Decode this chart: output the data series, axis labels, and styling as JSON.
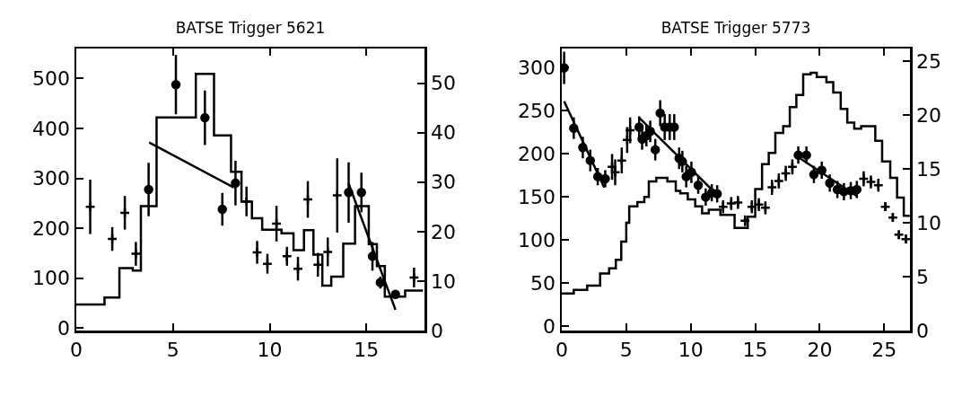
{
  "chart_data": [
    {
      "type": "scatter",
      "title": "BATSE Trigger 5621",
      "xlim": [
        0,
        18
      ],
      "xticks": [
        0,
        5,
        10,
        15
      ],
      "ylim": [
        -5,
        560
      ],
      "yticks": [
        0,
        100,
        200,
        300,
        400,
        500
      ],
      "y2lim": [
        0,
        57
      ],
      "y2ticks": [
        0,
        10,
        20,
        30,
        40,
        50
      ],
      "grid": false,
      "series": [
        {
          "type": "step",
          "color": "#000000",
          "x": [
            0,
            1.46,
            2.23,
            2.92,
            3.34,
            4.15,
            6.18,
            7.12,
            8.0,
            8.54,
            9.08,
            9.61,
            10.61,
            11.23,
            11.77,
            12.26,
            12.72,
            13.18,
            13.8,
            14.41,
            15.12,
            15.54,
            15.95,
            17.0,
            17.92
          ],
          "values": [
            47,
            61,
            120,
            115,
            244,
            422,
            509,
            386,
            313,
            253,
            220,
            197,
            190,
            156,
            196,
            147,
            85,
            103,
            169,
            244,
            168,
            124,
            63,
            75,
            75
          ]
        },
        {
          "type": "line",
          "axis": "y2",
          "color": "#000000",
          "x": [
            3.77,
            8.15
          ],
          "values": [
            38.0,
            28.9
          ]
        },
        {
          "type": "line",
          "axis": "y2",
          "color": "#000000",
          "x": [
            14.08,
            16.5
          ],
          "values": [
            29.7,
            4.2
          ]
        },
        {
          "type": "scatter",
          "axis": "y2",
          "marker": "circle",
          "color": "#000000",
          "x": [
            3.74,
            5.15,
            6.65,
            7.55,
            8.23,
            14.08,
            14.74,
            15.31,
            15.72,
            16.5
          ],
          "values": [
            28.5,
            49.7,
            43.0,
            24.5,
            29.8,
            27.9,
            27.9,
            15.0,
            9.7,
            7.3
          ],
          "errors": [
            5.4,
            6,
            5.5,
            3.3,
            4.5,
            6.1,
            4,
            2.9,
            1.2,
            0.5
          ]
        },
        {
          "type": "scatter",
          "axis": "y2",
          "marker": "cross",
          "color": "#000000",
          "x": [
            0.72,
            1.86,
            2.51,
            3.08,
            8.8,
            9.35,
            9.88,
            10.35,
            10.89,
            11.46,
            11.97,
            12.49,
            13.0,
            13.49,
            17.46
          ],
          "values": [
            25.0,
            18.5,
            23.8,
            15.5,
            26.1,
            15.8,
            13.5,
            21.6,
            15.0,
            12.5,
            26.5,
            13.3,
            15.9,
            27.3,
            10.7
          ],
          "errors": [
            5.5,
            2.4,
            3.4,
            2.4,
            3,
            2.3,
            2,
            3.6,
            1.9,
            2.4,
            3.7,
            2.4,
            2.9,
            7.5,
            2
          ]
        }
      ]
    },
    {
      "type": "scatter",
      "title": "BATSE Trigger 5773",
      "xlim": [
        0,
        27
      ],
      "xticks": [
        0,
        5,
        10,
        15,
        20,
        25
      ],
      "ylim": [
        -5,
        322
      ],
      "yticks": [
        0,
        50,
        100,
        150,
        200,
        250,
        300
      ],
      "y2lim": [
        0,
        26.2
      ],
      "y2ticks": [
        0,
        5,
        10,
        15,
        20,
        25
      ],
      "grid": false,
      "series": [
        {
          "type": "step",
          "color": "#000000",
          "x": [
            0,
            0.93,
            1.97,
            2.97,
            3.67,
            4.19,
            4.61,
            5.0,
            5.23,
            5.86,
            6.4,
            6.75,
            7.33,
            8.19,
            8.84,
            9.19,
            9.77,
            10.35,
            10.88,
            11.4,
            12.3,
            13.4,
            14.42,
            15.0,
            15.53,
            16.05,
            16.56,
            17.17,
            17.68,
            18.19,
            18.72,
            19.3,
            19.77,
            20.52,
            21.05,
            21.63,
            22.14,
            22.68,
            23.21,
            24.31,
            24.84,
            25.47,
            26.0,
            26.52,
            26.98
          ],
          "values": [
            38,
            42,
            47,
            61,
            67,
            77,
            98,
            120,
            139,
            144,
            150,
            168,
            172,
            168,
            157,
            154,
            147,
            139,
            131,
            135,
            129,
            114,
            127,
            159,
            188,
            201,
            224,
            232,
            254,
            268,
            292,
            294,
            289,
            283,
            271,
            252,
            236,
            229,
            232,
            215,
            191,
            172,
            149,
            128,
            128
          ]
        },
        {
          "type": "line",
          "axis": "y2",
          "color": "#000000",
          "x": [
            0.18,
            3.29
          ],
          "values": [
            21.3,
            13.3
          ]
        },
        {
          "type": "line",
          "axis": "y2",
          "color": "#000000",
          "x": [
            5.97,
            12.05
          ],
          "values": [
            19.8,
            12.6
          ]
        },
        {
          "type": "line",
          "axis": "y2",
          "color": "#000000",
          "x": [
            18.34,
            22.88
          ],
          "values": [
            16.1,
            12.5
          ]
        },
        {
          "type": "scatter",
          "axis": "y2",
          "marker": "circle",
          "color": "#000000",
          "x": [
            0.18,
            0.93,
            1.63,
            2.21,
            2.79,
            3.37,
            6.0,
            6.23,
            6.56,
            6.86,
            7.25,
            7.63,
            7.98,
            8.37,
            8.72,
            9.1,
            9.35,
            9.65,
            10.05,
            10.58,
            11.16,
            11.63,
            12.05,
            18.34,
            18.97,
            19.55,
            20.16,
            20.78,
            21.37,
            21.88,
            22.41,
            22.88
          ],
          "values": [
            24.4,
            18.8,
            17.0,
            15.8,
            14.3,
            14.1,
            18.9,
            17.8,
            18.1,
            18.5,
            16.8,
            20.2,
            18.9,
            18.9,
            18.9,
            16.0,
            15.7,
            14.3,
            14.7,
            13.5,
            12.4,
            12.8,
            12.7,
            16.3,
            16.3,
            14.5,
            14.9,
            13.7,
            13.1,
            12.9,
            13.0,
            13.1
          ],
          "errors": [
            1.5,
            1,
            1,
            1,
            0.8,
            0.8,
            1,
            1,
            1,
            1,
            1,
            1.2,
            1.2,
            1.2,
            1.2,
            1,
            1,
            1,
            1,
            0.8,
            0.8,
            0.8,
            0.8,
            0.8,
            0.8,
            0.8,
            0.8,
            0.8,
            0.8,
            0.8,
            0.8,
            0.8
          ]
        },
        {
          "type": "scatter",
          "axis": "y2",
          "marker": "cross",
          "color": "#000000",
          "x": [
            3.9,
            4.14,
            4.65,
            5.07,
            5.3,
            12.51,
            13.14,
            13.66,
            14.21,
            14.74,
            15.28,
            15.79,
            16.3,
            16.83,
            17.37,
            17.88,
            23.41,
            23.97,
            24.55,
            25.09,
            25.67,
            26.14,
            26.68
          ],
          "values": [
            15.2,
            14.7,
            15.8,
            17.7,
            18.6,
            11.5,
            11.8,
            11.9,
            10.2,
            11.5,
            11.7,
            11.4,
            13.3,
            13.9,
            14.6,
            15.2,
            14.1,
            13.8,
            13.5,
            11.5,
            10.5,
            8.9,
            8.5
          ],
          "errors": [
            1.2,
            1.2,
            1.2,
            1.2,
            1.2,
            0.6,
            0.6,
            0.6,
            0.5,
            0.6,
            0.6,
            0.6,
            0.7,
            0.7,
            0.7,
            0.7,
            0.7,
            0.6,
            0.6,
            0.4,
            0.4,
            0.4,
            0.4
          ]
        }
      ]
    }
  ]
}
